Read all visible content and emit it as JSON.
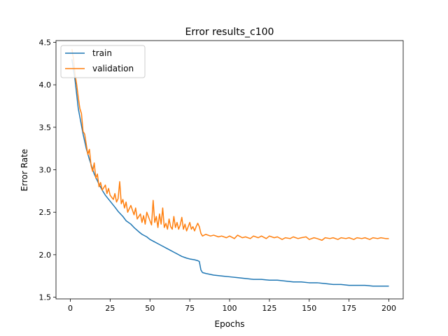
{
  "chart_data": {
    "type": "line",
    "title": "Error results_c100",
    "xlabel": "Epochs",
    "ylabel": "Error Rate",
    "xlim": [
      -9,
      209
    ],
    "ylim": [
      1.5,
      4.5
    ],
    "xticks": [
      0,
      25,
      50,
      75,
      100,
      125,
      150,
      175,
      200
    ],
    "yticks": [
      1.5,
      2.0,
      2.5,
      3.0,
      3.5,
      4.0,
      4.5
    ],
    "xtick_labels": [
      "0",
      "25",
      "50",
      "75",
      "100",
      "125",
      "150",
      "175",
      "200"
    ],
    "ytick_labels": [
      "1.5",
      "2.0",
      "2.5",
      "3.0",
      "3.5",
      "4.0",
      "4.5"
    ],
    "grid": false,
    "legend": "top-left",
    "series": [
      {
        "name": "train",
        "color": "#1f77b4",
        "points": [
          [
            1,
            4.3
          ],
          [
            3,
            4.05
          ],
          [
            5,
            3.72
          ],
          [
            8,
            3.42
          ],
          [
            10,
            3.25
          ],
          [
            12,
            3.12
          ],
          [
            15,
            2.95
          ],
          [
            18,
            2.83
          ],
          [
            20,
            2.76
          ],
          [
            22,
            2.7
          ],
          [
            25,
            2.63
          ],
          [
            28,
            2.56
          ],
          [
            30,
            2.51
          ],
          [
            33,
            2.45
          ],
          [
            35,
            2.4
          ],
          [
            38,
            2.36
          ],
          [
            40,
            2.32
          ],
          [
            43,
            2.27
          ],
          [
            45,
            2.24
          ],
          [
            48,
            2.21
          ],
          [
            50,
            2.18
          ],
          [
            53,
            2.15
          ],
          [
            55,
            2.13
          ],
          [
            58,
            2.1
          ],
          [
            60,
            2.08
          ],
          [
            63,
            2.05
          ],
          [
            65,
            2.03
          ],
          [
            68,
            2.0
          ],
          [
            70,
            1.98
          ],
          [
            73,
            1.96
          ],
          [
            75,
            1.95
          ],
          [
            78,
            1.94
          ],
          [
            80,
            1.93
          ],
          [
            81,
            1.92
          ],
          [
            82,
            1.82
          ],
          [
            83,
            1.79
          ],
          [
            85,
            1.78
          ],
          [
            90,
            1.76
          ],
          [
            95,
            1.75
          ],
          [
            100,
            1.74
          ],
          [
            105,
            1.73
          ],
          [
            110,
            1.72
          ],
          [
            115,
            1.71
          ],
          [
            120,
            1.71
          ],
          [
            125,
            1.7
          ],
          [
            130,
            1.7
          ],
          [
            135,
            1.69
          ],
          [
            140,
            1.68
          ],
          [
            145,
            1.68
          ],
          [
            150,
            1.67
          ],
          [
            155,
            1.67
          ],
          [
            160,
            1.66
          ],
          [
            165,
            1.65
          ],
          [
            170,
            1.65
          ],
          [
            175,
            1.64
          ],
          [
            180,
            1.64
          ],
          [
            185,
            1.64
          ],
          [
            190,
            1.63
          ],
          [
            195,
            1.63
          ],
          [
            200,
            1.63
          ]
        ]
      },
      {
        "name": "validation",
        "color": "#ff7f0e",
        "points": [
          [
            1,
            4.42
          ],
          [
            2,
            4.3
          ],
          [
            3,
            4.12
          ],
          [
            4,
            4.0
          ],
          [
            5,
            3.85
          ],
          [
            6,
            3.72
          ],
          [
            7,
            3.66
          ],
          [
            8,
            3.45
          ],
          [
            9,
            3.42
          ],
          [
            10,
            3.3
          ],
          [
            11,
            3.18
          ],
          [
            12,
            3.24
          ],
          [
            13,
            3.05
          ],
          [
            14,
            2.98
          ],
          [
            15,
            3.08
          ],
          [
            16,
            2.9
          ],
          [
            17,
            2.95
          ],
          [
            18,
            2.8
          ],
          [
            19,
            2.85
          ],
          [
            20,
            2.76
          ],
          [
            22,
            2.82
          ],
          [
            23,
            2.72
          ],
          [
            24,
            2.78
          ],
          [
            25,
            2.7
          ],
          [
            27,
            2.65
          ],
          [
            28,
            2.72
          ],
          [
            29,
            2.62
          ],
          [
            30,
            2.66
          ],
          [
            31,
            2.86
          ],
          [
            32,
            2.6
          ],
          [
            33,
            2.65
          ],
          [
            34,
            2.55
          ],
          [
            35,
            2.62
          ],
          [
            36,
            2.5
          ],
          [
            38,
            2.58
          ],
          [
            40,
            2.47
          ],
          [
            41,
            2.55
          ],
          [
            42,
            2.42
          ],
          [
            44,
            2.48
          ],
          [
            45,
            2.38
          ],
          [
            46,
            2.46
          ],
          [
            47,
            2.36
          ],
          [
            48,
            2.5
          ],
          [
            50,
            2.4
          ],
          [
            51,
            2.35
          ],
          [
            52,
            2.64
          ],
          [
            53,
            2.38
          ],
          [
            54,
            2.45
          ],
          [
            55,
            2.32
          ],
          [
            56,
            2.48
          ],
          [
            57,
            2.36
          ],
          [
            58,
            2.55
          ],
          [
            59,
            2.32
          ],
          [
            60,
            2.37
          ],
          [
            61,
            2.3
          ],
          [
            62,
            2.42
          ],
          [
            63,
            2.33
          ],
          [
            64,
            2.3
          ],
          [
            65,
            2.45
          ],
          [
            66,
            2.32
          ],
          [
            67,
            2.38
          ],
          [
            68,
            2.3
          ],
          [
            69,
            2.35
          ],
          [
            70,
            2.44
          ],
          [
            71,
            2.3
          ],
          [
            72,
            2.36
          ],
          [
            73,
            2.28
          ],
          [
            74,
            2.33
          ],
          [
            75,
            2.38
          ],
          [
            76,
            2.3
          ],
          [
            77,
            2.33
          ],
          [
            78,
            2.28
          ],
          [
            79,
            2.33
          ],
          [
            80,
            2.37
          ],
          [
            81,
            2.33
          ],
          [
            82,
            2.25
          ],
          [
            83,
            2.22
          ],
          [
            85,
            2.24
          ],
          [
            88,
            2.22
          ],
          [
            90,
            2.23
          ],
          [
            93,
            2.21
          ],
          [
            95,
            2.22
          ],
          [
            98,
            2.2
          ],
          [
            100,
            2.22
          ],
          [
            103,
            2.19
          ],
          [
            105,
            2.23
          ],
          [
            108,
            2.2
          ],
          [
            110,
            2.21
          ],
          [
            113,
            2.19
          ],
          [
            115,
            2.22
          ],
          [
            118,
            2.2
          ],
          [
            120,
            2.22
          ],
          [
            123,
            2.19
          ],
          [
            125,
            2.22
          ],
          [
            128,
            2.2
          ],
          [
            130,
            2.21
          ],
          [
            133,
            2.18
          ],
          [
            135,
            2.2
          ],
          [
            138,
            2.19
          ],
          [
            140,
            2.21
          ],
          [
            143,
            2.19
          ],
          [
            145,
            2.2
          ],
          [
            148,
            2.21
          ],
          [
            150,
            2.18
          ],
          [
            153,
            2.2
          ],
          [
            155,
            2.19
          ],
          [
            158,
            2.17
          ],
          [
            160,
            2.2
          ],
          [
            163,
            2.19
          ],
          [
            165,
            2.2
          ],
          [
            168,
            2.18
          ],
          [
            170,
            2.2
          ],
          [
            173,
            2.19
          ],
          [
            175,
            2.2
          ],
          [
            178,
            2.18
          ],
          [
            180,
            2.2
          ],
          [
            183,
            2.19
          ],
          [
            185,
            2.2
          ],
          [
            188,
            2.18
          ],
          [
            190,
            2.2
          ],
          [
            193,
            2.19
          ],
          [
            195,
            2.2
          ],
          [
            198,
            2.19
          ],
          [
            200,
            2.19
          ]
        ]
      }
    ]
  }
}
